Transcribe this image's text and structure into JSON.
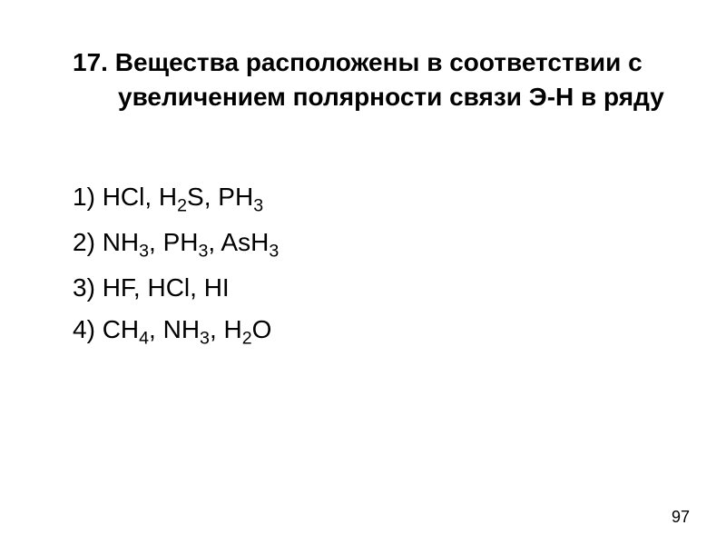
{
  "question": {
    "number": "17.",
    "text": "Вещества расположены в соответствии с увеличением полярности связи Э-Н в ряду"
  },
  "options": [
    {
      "num": "1)",
      "formulas": [
        "HCl",
        "H2S",
        "PH3"
      ]
    },
    {
      "num": "2)",
      "formulas": [
        "NH3",
        "PH3",
        "AsH3"
      ]
    },
    {
      "num": "3)",
      "formulas": [
        "HF",
        "HCl",
        "HI"
      ]
    },
    {
      "num": "4)",
      "formulas": [
        "CH4",
        "NH3",
        "H2O"
      ]
    }
  ],
  "page_number": "97",
  "style": {
    "background_color": "#ffffff",
    "text_color": "#000000",
    "header_fontsize": 28,
    "header_fontweight": "bold",
    "option_fontsize": 28,
    "option_fontweight": "normal",
    "page_number_fontsize": 18
  }
}
